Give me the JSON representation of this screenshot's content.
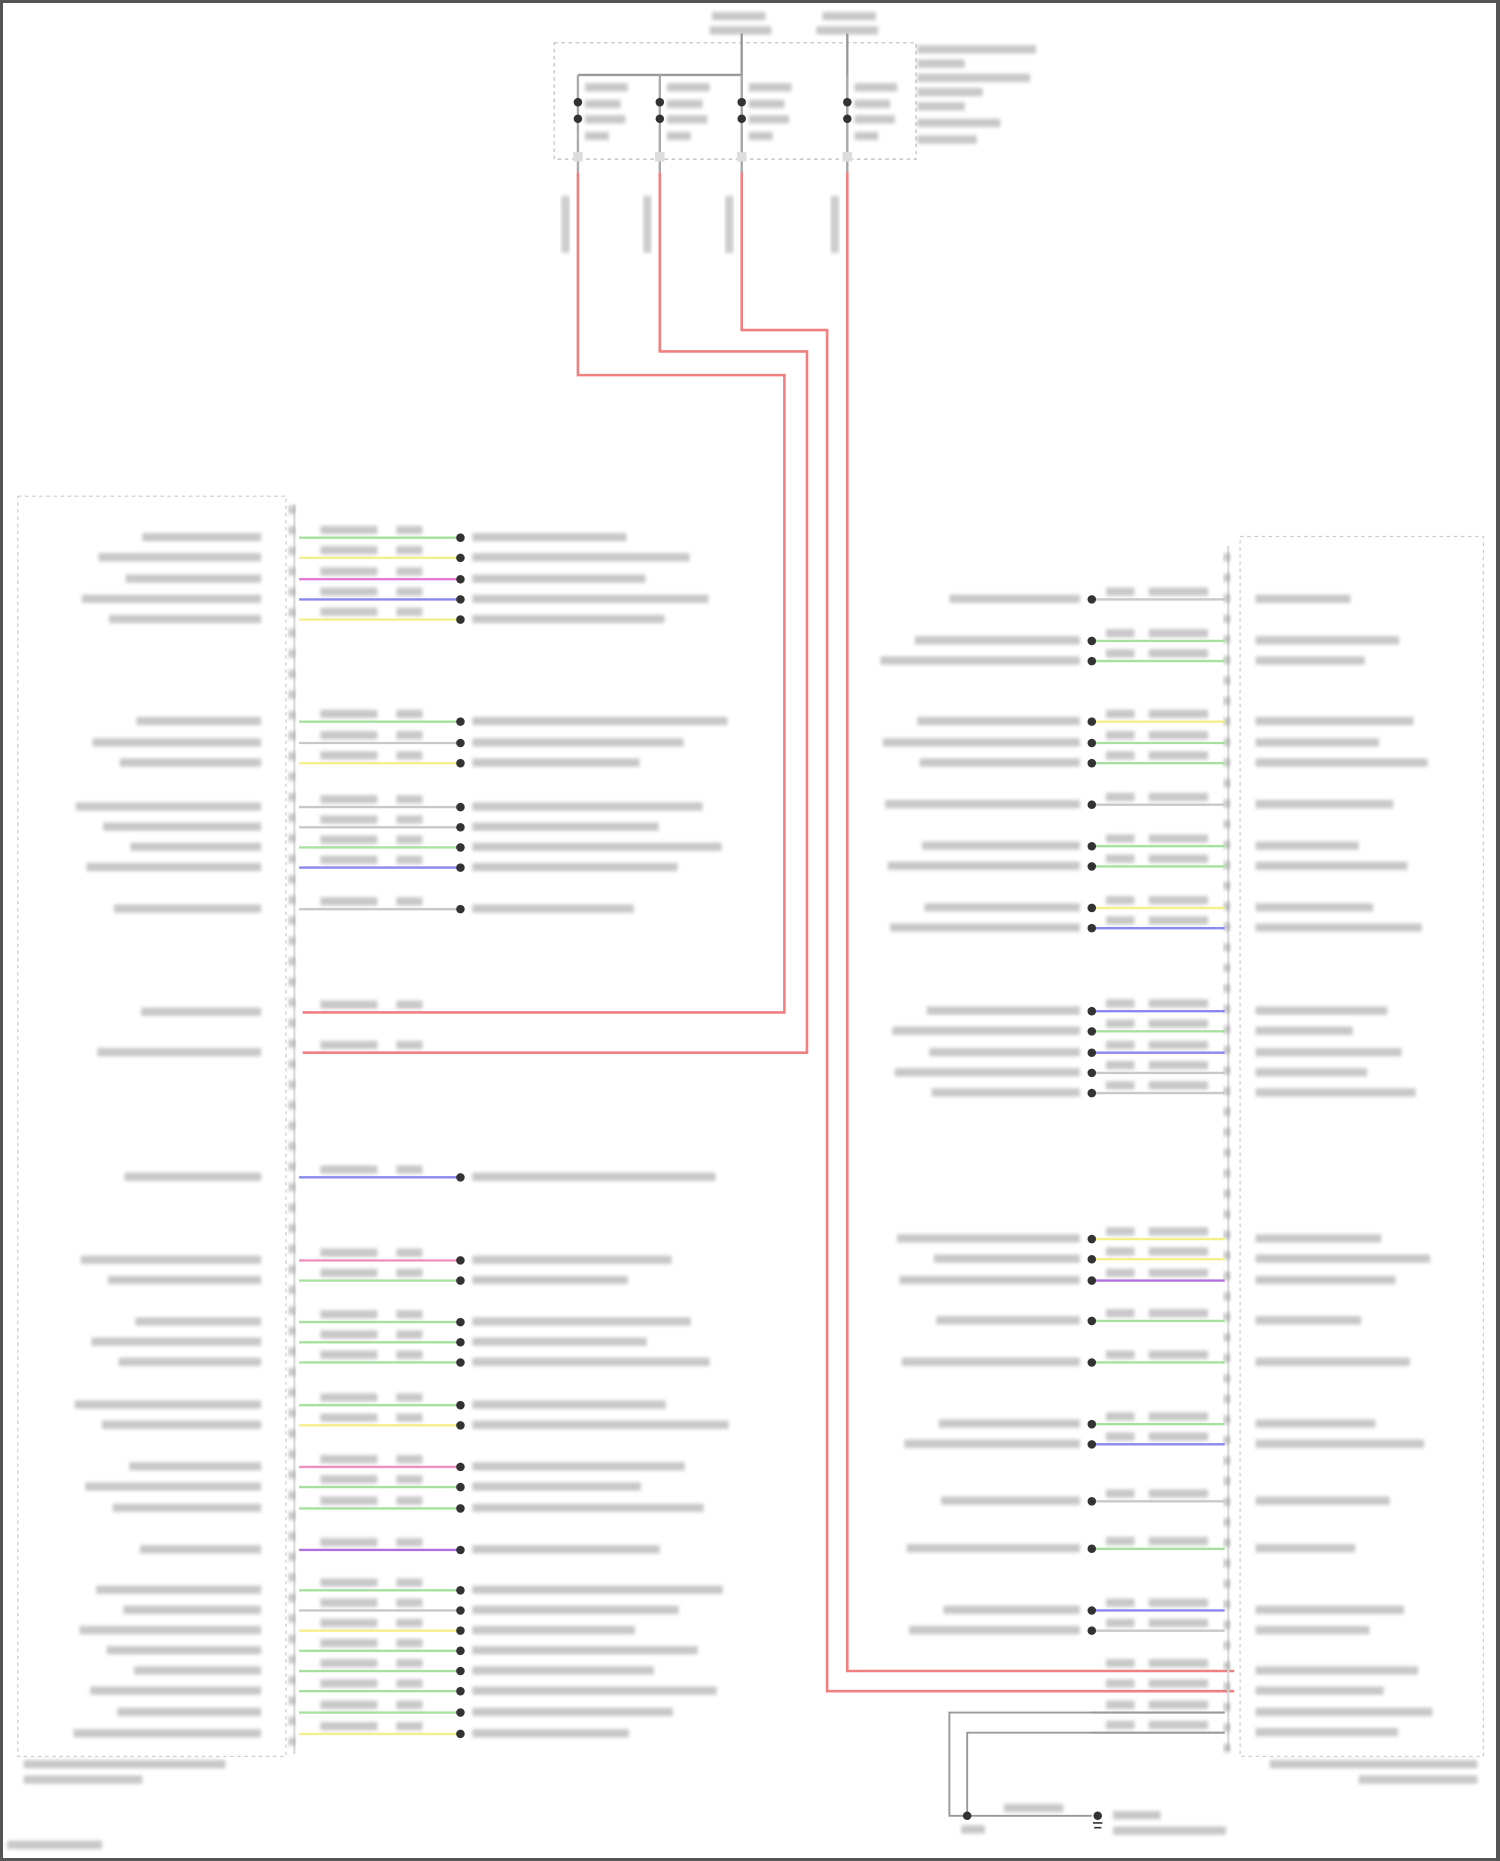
{
  "diagram": {
    "wire_colors": {
      "red": "#f08080",
      "green": "#a8e0a0",
      "yellow": "#f4f08a",
      "magenta": "#e67ad8",
      "blue": "#8888f0",
      "purple": "#b070e0",
      "pink": "#f090c0",
      "gray": "#c8c8c8"
    },
    "left_connector_wires": [
      "green",
      "yellow",
      "magenta",
      "blue",
      "yellow",
      "green",
      "gray",
      "yellow",
      "gray",
      "gray",
      "green",
      "blue",
      "gray",
      "red",
      "red",
      "blue",
      "pink",
      "green",
      "green",
      "green",
      "green",
      "green",
      "yellow",
      "pink",
      "green",
      "green",
      "purple",
      "green",
      "gray",
      "yellow",
      "green",
      "green",
      "green",
      "green",
      "yellow"
    ],
    "right_connector_wires": [
      "gray",
      "green",
      "green",
      "yellow",
      "green",
      "green",
      "gray",
      "green",
      "green",
      "yellow",
      "blue",
      "blue",
      "green",
      "blue",
      "gray",
      "gray",
      "yellow",
      "yellow",
      "purple",
      "green",
      "green",
      "green",
      "blue",
      "gray",
      "green",
      "blue",
      "gray",
      "red",
      "red",
      "gray",
      "gray"
    ],
    "icons": [
      "splice-dot-icon",
      "ground-icon"
    ]
  }
}
